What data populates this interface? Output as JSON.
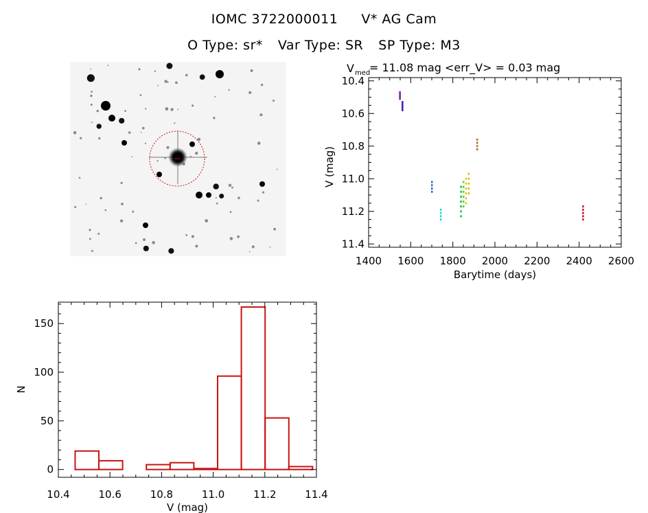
{
  "header": {
    "object_id": "IOMC 3722000011",
    "star_name": "V* AG Cam",
    "o_type": "O Type: sr*",
    "var_type": "Var Type: SR",
    "sp_type": "SP Type: M3"
  },
  "chart_data": [
    {
      "type": "scatter",
      "title_main": "V",
      "title_sub": "med",
      "title_rest": " = 11.08 mag <err_V> = 0.03 mag",
      "xlabel": "Barytime (days)",
      "ylabel": "V (mag)",
      "xlim": [
        1400,
        2600
      ],
      "ylim": [
        11.42,
        10.38
      ],
      "xticks": [
        1400,
        1600,
        1800,
        2000,
        2200,
        2400,
        2600
      ],
      "yticks": [
        10.4,
        10.6,
        10.8,
        11.0,
        11.2,
        11.4
      ],
      "series": [
        {
          "name": "g1",
          "color": "#7a1fa2",
          "x": [
            1548,
            1548,
            1548,
            1548,
            1548
          ],
          "y": [
            10.47,
            10.48,
            10.49,
            10.5,
            10.51
          ]
        },
        {
          "name": "g2",
          "color": "#3b1fb0",
          "x": [
            1560,
            1560,
            1560,
            1560,
            1560,
            1560
          ],
          "y": [
            10.53,
            10.54,
            10.55,
            10.56,
            10.57,
            10.58
          ]
        },
        {
          "name": "g3",
          "color": "#1f6fc8",
          "x": [
            1700,
            1700,
            1700,
            1700
          ],
          "y": [
            11.02,
            11.04,
            11.06,
            11.08
          ]
        },
        {
          "name": "g4",
          "color": "#1fd0e0",
          "x": [
            1742,
            1742,
            1742,
            1742
          ],
          "y": [
            11.19,
            11.21,
            11.23,
            11.25
          ]
        },
        {
          "name": "g5",
          "color": "#10c040",
          "x": [
            1838,
            1838,
            1838,
            1838,
            1838,
            1838,
            1838
          ],
          "y": [
            11.05,
            11.08,
            11.11,
            11.14,
            11.17,
            11.2,
            11.23
          ]
        },
        {
          "name": "g6",
          "color": "#60d020",
          "x": [
            1850,
            1850,
            1850,
            1850,
            1850,
            1850
          ],
          "y": [
            11.02,
            11.05,
            11.08,
            11.11,
            11.14,
            11.17
          ]
        },
        {
          "name": "g7",
          "color": "#c8d010",
          "x": [
            1862,
            1862,
            1862,
            1862,
            1862,
            1862
          ],
          "y": [
            11.0,
            11.03,
            11.06,
            11.09,
            11.12,
            11.15
          ]
        },
        {
          "name": "g8",
          "color": "#f0b010",
          "x": [
            1875,
            1875,
            1875,
            1875,
            1875
          ],
          "y": [
            10.97,
            11.0,
            11.03,
            11.06,
            11.09
          ]
        },
        {
          "name": "g9",
          "color": "#b07010",
          "x": [
            1915,
            1915,
            1915,
            1915
          ],
          "y": [
            10.76,
            10.78,
            10.8,
            10.82
          ]
        },
        {
          "name": "g10",
          "color": "#d01010",
          "x": [
            2418,
            2418,
            2418,
            2418,
            2418
          ],
          "y": [
            11.17,
            11.19,
            11.21,
            11.23,
            11.25
          ]
        }
      ]
    },
    {
      "type": "bar",
      "subtype": "histogram",
      "xlabel": "V (mag)",
      "ylabel": "N",
      "xlim": [
        10.4,
        11.4
      ],
      "ylim": [
        -8,
        172
      ],
      "xticks": [
        10.4,
        10.6,
        10.8,
        11.0,
        11.2,
        11.4
      ],
      "xtick_labels": [
        "10.4",
        "10.6",
        "10.8",
        "11.0",
        "11.2",
        "11.4"
      ],
      "yticks": [
        0,
        50,
        100,
        150
      ],
      "bin_edges": [
        10.465,
        10.557,
        10.649,
        10.741,
        10.833,
        10.925,
        11.017,
        11.109,
        11.201,
        11.293
      ],
      "bar_color": "#cc1111",
      "bins": [
        {
          "lo": 10.465,
          "hi": 10.557,
          "value": 19
        },
        {
          "lo": 10.557,
          "hi": 10.649,
          "value": 9
        },
        {
          "lo": 10.741,
          "hi": 10.833,
          "value": 5
        },
        {
          "lo": 10.833,
          "hi": 10.925,
          "value": 7
        },
        {
          "lo": 10.925,
          "hi": 11.017,
          "value": 1
        },
        {
          "lo": 11.017,
          "hi": 11.109,
          "value": 96
        },
        {
          "lo": 11.109,
          "hi": 11.201,
          "value": 167
        },
        {
          "lo": 11.201,
          "hi": 11.293,
          "value": 53
        },
        {
          "lo": 11.293,
          "hi": 11.385,
          "value": 3
        }
      ]
    }
  ]
}
